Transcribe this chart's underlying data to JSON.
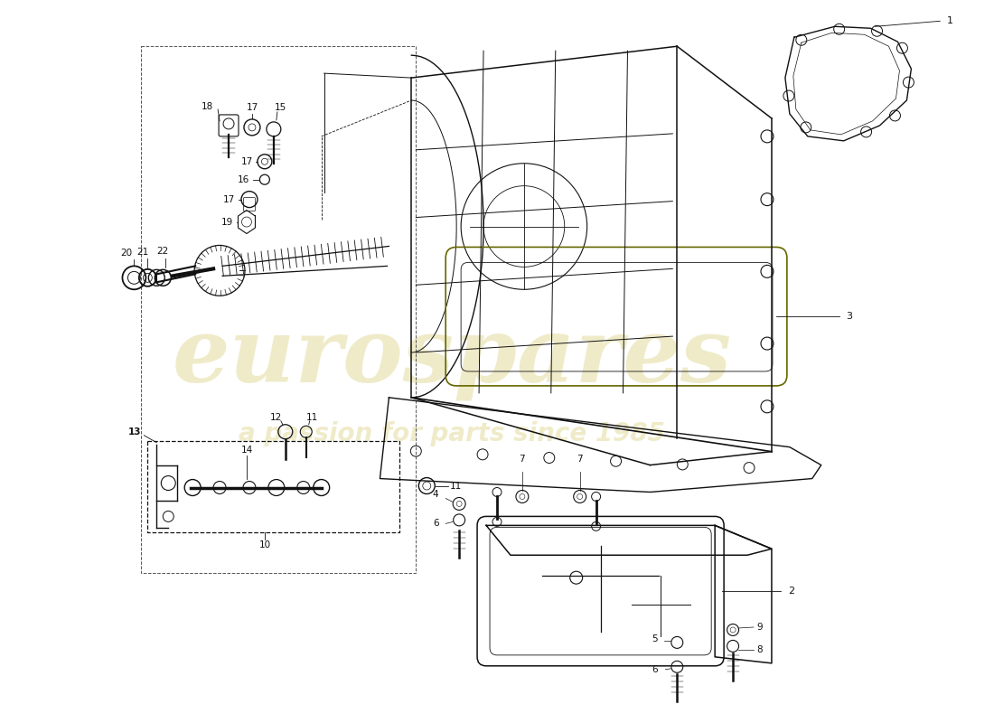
{
  "background_color": "#ffffff",
  "line_color": "#111111",
  "watermark_text": "eurospares",
  "watermark_subtext": "a passion for parts since 1985",
  "watermark_color": "#c8b840",
  "fig_width": 11.0,
  "fig_height": 8.0,
  "dpi": 100,
  "label_fontsize": 7.5,
  "bold_label_fontsize": 8.0
}
